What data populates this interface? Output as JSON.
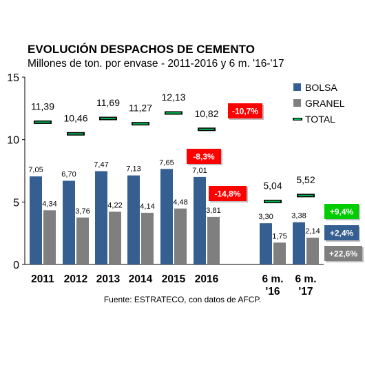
{
  "chart_data": {
    "type": "bar",
    "title": "EVOLUCIÓN DESPACHOS DE CEMENTO",
    "subtitle": "Millones de ton. por envase - 2011-2016 y 6 m. '16-'17",
    "source": "Fuente: ESTRATECO, con datos de AFCP.",
    "categories": [
      "2011",
      "2012",
      "2013",
      "2014",
      "2015",
      "2016",
      "6 m. '16",
      "6 m. '17"
    ],
    "category_lines": [
      [
        "2011"
      ],
      [
        "2012"
      ],
      [
        "2013"
      ],
      [
        "2014"
      ],
      [
        "2015"
      ],
      [
        "2016"
      ],
      [
        "6 m.",
        "'16"
      ],
      [
        "6 m.",
        "'17"
      ]
    ],
    "ylim": [
      0,
      15
    ],
    "yticks": [
      "0",
      "5",
      "10",
      "15"
    ],
    "series": [
      {
        "name": "BOLSA",
        "type": "bar",
        "color": "#365f91",
        "values": [
          7.05,
          6.7,
          7.47,
          7.13,
          7.65,
          7.01,
          3.3,
          3.38
        ],
        "labels": [
          "7,05",
          "6,70",
          "7,47",
          "7,13",
          "7,65",
          "7,01",
          "3,30",
          "3,38"
        ]
      },
      {
        "name": "GRANEL",
        "type": "bar",
        "color": "#7f7f7f",
        "values": [
          4.34,
          3.76,
          4.22,
          4.14,
          4.48,
          3.81,
          1.75,
          2.14
        ],
        "labels": [
          "4,34",
          "3,76",
          "4,22",
          "4,14",
          "4,48",
          "3,81",
          "1,75",
          "2,14"
        ]
      },
      {
        "name": "TOTAL",
        "type": "marker",
        "color": "#00b050",
        "values": [
          11.39,
          10.46,
          11.69,
          11.27,
          12.13,
          10.82,
          5.04,
          5.52
        ],
        "labels": [
          "11,39",
          "10,46",
          "11,69",
          "11,27",
          "12,13",
          "10,82",
          "5,04",
          "5,52"
        ]
      }
    ],
    "legend_placement": "top-right",
    "grid": false,
    "annotations": [
      {
        "text": "-10,7%",
        "color": "#ff0000"
      },
      {
        "text": "-8,3%",
        "color": "#ff0000"
      },
      {
        "text": "-14,8%",
        "color": "#ff0000"
      },
      {
        "text": "+9,4%",
        "color": "#00cc00"
      },
      {
        "text": "+2,4%",
        "color": "#365f91"
      },
      {
        "text": "+22,6%",
        "color": "#7f7f7f"
      }
    ]
  }
}
